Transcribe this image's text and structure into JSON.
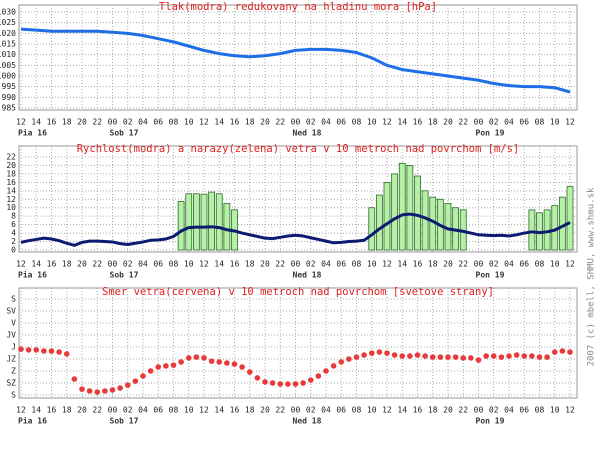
{
  "chart_data": [
    {
      "type": "line",
      "title": "Tlak(modra) redukovany na hladinu mora [hPa]",
      "x": [
        0,
        2,
        4,
        6,
        8,
        10,
        12,
        14,
        16,
        18,
        20,
        22,
        24,
        26,
        28,
        30,
        32,
        34,
        36,
        38,
        40,
        42,
        44,
        46,
        48,
        50,
        52,
        54,
        56,
        58,
        60,
        62,
        64,
        66,
        68,
        70,
        72
      ],
      "series": [
        {
          "type": "line",
          "color": "#1e6fe6",
          "values": [
            1022,
            1021.5,
            1021,
            1021,
            1021,
            1021,
            1020.5,
            1020,
            1019,
            1017.5,
            1016,
            1014,
            1012,
            1010.5,
            1009.5,
            1009,
            1009.5,
            1010.5,
            1012,
            1012.5,
            1012.5,
            1012,
            1011,
            1008.5,
            1005,
            1003,
            1002,
            1001,
            1000,
            999,
            998,
            996.5,
            995.5,
            995,
            995,
            994.5,
            992.5
          ]
        }
      ],
      "ylim": [
        985,
        1030
      ],
      "yticks": [
        1030,
        1025,
        1020,
        1015,
        1010,
        1005,
        1000,
        995,
        990,
        985
      ],
      "xlim": [
        0,
        72
      ],
      "xticks": [
        {
          "value": 0,
          "label": "12"
        },
        {
          "value": 2,
          "label": "14"
        },
        {
          "value": 4,
          "label": "16"
        },
        {
          "value": 6,
          "label": "18"
        },
        {
          "value": 8,
          "label": "20"
        },
        {
          "value": 10,
          "label": "22"
        },
        {
          "value": 12,
          "label": "00"
        },
        {
          "value": 14,
          "label": "02"
        },
        {
          "value": 16,
          "label": "04"
        },
        {
          "value": 18,
          "label": "06"
        },
        {
          "value": 20,
          "label": "08"
        },
        {
          "value": 22,
          "label": "10"
        },
        {
          "value": 24,
          "label": "12"
        },
        {
          "value": 26,
          "label": "14"
        },
        {
          "value": 28,
          "label": "16"
        },
        {
          "value": 30,
          "label": "18"
        },
        {
          "value": 32,
          "label": "20"
        },
        {
          "value": 34,
          "label": "22"
        },
        {
          "value": 36,
          "label": "00"
        },
        {
          "value": 38,
          "label": "02"
        },
        {
          "value": 40,
          "label": "04"
        },
        {
          "value": 42,
          "label": "06"
        },
        {
          "value": 44,
          "label": "08"
        },
        {
          "value": 46,
          "label": "10"
        },
        {
          "value": 48,
          "label": "12"
        },
        {
          "value": 50,
          "label": "14"
        },
        {
          "value": 52,
          "label": "16"
        },
        {
          "value": 54,
          "label": "18"
        },
        {
          "value": 56,
          "label": "20"
        },
        {
          "value": 58,
          "label": "22"
        },
        {
          "value": 60,
          "label": "00"
        },
        {
          "value": 62,
          "label": "02"
        },
        {
          "value": 64,
          "label": "04"
        },
        {
          "value": 66,
          "label": "06"
        },
        {
          "value": 68,
          "label": "08"
        },
        {
          "value": 70,
          "label": "10"
        },
        {
          "value": 72,
          "label": "12"
        }
      ],
      "day_ticks": [
        {
          "value": 0,
          "label": "Pia 16"
        },
        {
          "value": 12,
          "label": "Sob 17"
        },
        {
          "value": 36,
          "label": "Ned 18"
        },
        {
          "value": 60,
          "label": "Pon 19"
        }
      ],
      "grid": true
    },
    {
      "type": "combo",
      "title": "Rychlost(modra) a narazy(zelena) vetra v 10 metroch nad povrchom [m/s]",
      "x": [
        0,
        1,
        2,
        3,
        4,
        5,
        6,
        7,
        8,
        9,
        10,
        11,
        12,
        13,
        14,
        15,
        16,
        17,
        18,
        19,
        20,
        21,
        22,
        23,
        24,
        25,
        26,
        27,
        28,
        29,
        30,
        31,
        32,
        33,
        34,
        35,
        36,
        37,
        38,
        39,
        40,
        41,
        42,
        43,
        44,
        45,
        46,
        47,
        48,
        49,
        50,
        51,
        52,
        53,
        54,
        55,
        56,
        57,
        58,
        59,
        60,
        61,
        62,
        63,
        64,
        65,
        66,
        67,
        68,
        69,
        70,
        71,
        72
      ],
      "series": [
        {
          "type": "bar",
          "color": "#b6f0a6",
          "values": [
            null,
            null,
            null,
            null,
            null,
            null,
            null,
            null,
            null,
            null,
            null,
            null,
            null,
            null,
            null,
            null,
            null,
            null,
            null,
            null,
            null,
            11.5,
            13.3,
            13.3,
            13.2,
            13.7,
            13.3,
            11,
            9.5,
            null,
            null,
            null,
            null,
            null,
            null,
            null,
            null,
            null,
            null,
            null,
            null,
            null,
            null,
            null,
            null,
            null,
            10,
            13,
            16,
            18,
            20.5,
            20,
            17.5,
            14,
            12.5,
            12,
            11,
            10,
            9.5,
            null,
            null,
            null,
            null,
            null,
            null,
            null,
            null,
            9.5,
            8.8,
            9.5,
            10.5,
            12.5,
            15
          ]
        },
        {
          "type": "line",
          "color": "#0c1a72",
          "values": [
            1.8,
            2.2,
            2.5,
            2.8,
            2.6,
            2.2,
            1.6,
            1.1,
            1.8,
            2.1,
            2.1,
            2.0,
            1.9,
            1.5,
            1.3,
            1.6,
            1.9,
            2.3,
            2.4,
            2.6,
            3.2,
            4.5,
            5.3,
            5.4,
            5.4,
            5.5,
            5.3,
            4.8,
            4.5,
            4.0,
            3.6,
            3.2,
            2.8,
            2.7,
            3.0,
            3.3,
            3.5,
            3.3,
            2.9,
            2.5,
            2.1,
            1.7,
            1.8,
            2.0,
            2.1,
            2.3,
            3.6,
            5.0,
            6.2,
            7.4,
            8.3,
            8.5,
            8.2,
            7.6,
            6.8,
            5.8,
            5.0,
            4.7,
            4.4,
            4.0,
            3.6,
            3.5,
            3.4,
            3.5,
            3.3,
            3.6,
            4.0,
            4.3,
            4.1,
            4.3,
            4.7,
            5.6,
            6.5
          ]
        }
      ],
      "ylim": [
        0,
        22
      ],
      "yticks": [
        22,
        20,
        18,
        16,
        14,
        12,
        10,
        8,
        6,
        4,
        2,
        0
      ],
      "xlim": [
        0,
        72
      ],
      "xticks": [
        {
          "value": 0,
          "label": "12"
        },
        {
          "value": 2,
          "label": "14"
        },
        {
          "value": 4,
          "label": "16"
        },
        {
          "value": 6,
          "label": "18"
        },
        {
          "value": 8,
          "label": "20"
        },
        {
          "value": 10,
          "label": "22"
        },
        {
          "value": 12,
          "label": "00"
        },
        {
          "value": 14,
          "label": "02"
        },
        {
          "value": 16,
          "label": "04"
        },
        {
          "value": 18,
          "label": "06"
        },
        {
          "value": 20,
          "label": "08"
        },
        {
          "value": 22,
          "label": "10"
        },
        {
          "value": 24,
          "label": "12"
        },
        {
          "value": 26,
          "label": "14"
        },
        {
          "value": 28,
          "label": "16"
        },
        {
          "value": 30,
          "label": "18"
        },
        {
          "value": 32,
          "label": "20"
        },
        {
          "value": 34,
          "label": "22"
        },
        {
          "value": 36,
          "label": "00"
        },
        {
          "value": 38,
          "label": "02"
        },
        {
          "value": 40,
          "label": "04"
        },
        {
          "value": 42,
          "label": "06"
        },
        {
          "value": 44,
          "label": "08"
        },
        {
          "value": 46,
          "label": "10"
        },
        {
          "value": 48,
          "label": "12"
        },
        {
          "value": 50,
          "label": "14"
        },
        {
          "value": 52,
          "label": "16"
        },
        {
          "value": 54,
          "label": "18"
        },
        {
          "value": 56,
          "label": "20"
        },
        {
          "value": 58,
          "label": "22"
        },
        {
          "value": 60,
          "label": "00"
        },
        {
          "value": 62,
          "label": "02"
        },
        {
          "value": 64,
          "label": "04"
        },
        {
          "value": 66,
          "label": "06"
        },
        {
          "value": 68,
          "label": "08"
        },
        {
          "value": 70,
          "label": "10"
        },
        {
          "value": 72,
          "label": "12"
        }
      ],
      "day_ticks": [
        {
          "value": 0,
          "label": "Pia 16"
        },
        {
          "value": 12,
          "label": "Sob 17"
        },
        {
          "value": 36,
          "label": "Ned 18"
        },
        {
          "value": 60,
          "label": "Pon 19"
        }
      ],
      "grid": true
    },
    {
      "type": "scatter",
      "title": "Smer vetra(cervena) v 10 metroch nad povrchom [svetove strany]",
      "x": [
        0,
        1,
        2,
        3,
        4,
        5,
        6,
        7,
        8,
        9,
        10,
        11,
        12,
        13,
        14,
        15,
        16,
        17,
        18,
        19,
        20,
        21,
        22,
        23,
        24,
        25,
        26,
        27,
        28,
        29,
        30,
        31,
        32,
        33,
        34,
        35,
        36,
        37,
        38,
        39,
        40,
        41,
        42,
        43,
        44,
        45,
        46,
        47,
        48,
        49,
        50,
        51,
        52,
        53,
        54,
        55,
        56,
        57,
        58,
        59,
        60,
        61,
        62,
        63,
        64,
        65,
        66,
        67,
        68,
        69,
        70,
        71,
        72
      ],
      "series": [
        {
          "type": "scatter",
          "color": "#e83a3a",
          "values": [
            188,
            191,
            191,
            195,
            195,
            199,
            206,
            300,
            338,
            345,
            349,
            345,
            341,
            334,
            323,
            308,
            289,
            270,
            255,
            251,
            248,
            236,
            221,
            218,
            221,
            233,
            236,
            240,
            244,
            255,
            274,
            296,
            311,
            315,
            319,
            319,
            319,
            315,
            304,
            289,
            270,
            251,
            236,
            225,
            218,
            210,
            203,
            199,
            203,
            210,
            214,
            214,
            210,
            214,
            218,
            218,
            218,
            218,
            221,
            221,
            229,
            214,
            214,
            218,
            214,
            210,
            214,
            214,
            218,
            218,
            199,
            195,
            199
          ]
        }
      ],
      "ylim": [
        360,
        0
      ],
      "yticks": [
        {
          "value": 0,
          "label": "S"
        },
        {
          "value": 45,
          "label": "SV"
        },
        {
          "value": 90,
          "label": "V"
        },
        {
          "value": 135,
          "label": "JV"
        },
        {
          "value": 180,
          "label": "J"
        },
        {
          "value": 225,
          "label": "JZ"
        },
        {
          "value": 270,
          "label": "Z"
        },
        {
          "value": 315,
          "label": "SZ"
        },
        {
          "value": 360,
          "label": "S"
        }
      ],
      "xlim": [
        0,
        72
      ],
      "xticks": [
        {
          "value": 0,
          "label": "12"
        },
        {
          "value": 2,
          "label": "14"
        },
        {
          "value": 4,
          "label": "16"
        },
        {
          "value": 6,
          "label": "18"
        },
        {
          "value": 8,
          "label": "20"
        },
        {
          "value": 10,
          "label": "22"
        },
        {
          "value": 12,
          "label": "00"
        },
        {
          "value": 14,
          "label": "02"
        },
        {
          "value": 16,
          "label": "04"
        },
        {
          "value": 18,
          "label": "06"
        },
        {
          "value": 20,
          "label": "08"
        },
        {
          "value": 22,
          "label": "10"
        },
        {
          "value": 24,
          "label": "12"
        },
        {
          "value": 26,
          "label": "14"
        },
        {
          "value": 28,
          "label": "16"
        },
        {
          "value": 30,
          "label": "18"
        },
        {
          "value": 32,
          "label": "20"
        },
        {
          "value": 34,
          "label": "22"
        },
        {
          "value": 36,
          "label": "00"
        },
        {
          "value": 38,
          "label": "02"
        },
        {
          "value": 40,
          "label": "04"
        },
        {
          "value": 42,
          "label": "06"
        },
        {
          "value": 44,
          "label": "08"
        },
        {
          "value": 46,
          "label": "10"
        },
        {
          "value": 48,
          "label": "12"
        },
        {
          "value": 50,
          "label": "14"
        },
        {
          "value": 52,
          "label": "16"
        },
        {
          "value": 54,
          "label": "18"
        },
        {
          "value": 56,
          "label": "20"
        },
        {
          "value": 58,
          "label": "22"
        },
        {
          "value": 60,
          "label": "00"
        },
        {
          "value": 62,
          "label": "02"
        },
        {
          "value": 64,
          "label": "04"
        },
        {
          "value": 66,
          "label": "06"
        },
        {
          "value": 68,
          "label": "08"
        },
        {
          "value": 70,
          "label": "10"
        },
        {
          "value": 72,
          "label": "12"
        }
      ],
      "day_ticks": [
        {
          "value": 0,
          "label": "Pia 16"
        },
        {
          "value": 12,
          "label": "Sob 17"
        },
        {
          "value": 36,
          "label": "Ned 18"
        },
        {
          "value": 60,
          "label": "Pon 19"
        }
      ],
      "grid": true
    }
  ],
  "credit": "2007 (c) mbell, SHMU, www.shmu.sk"
}
